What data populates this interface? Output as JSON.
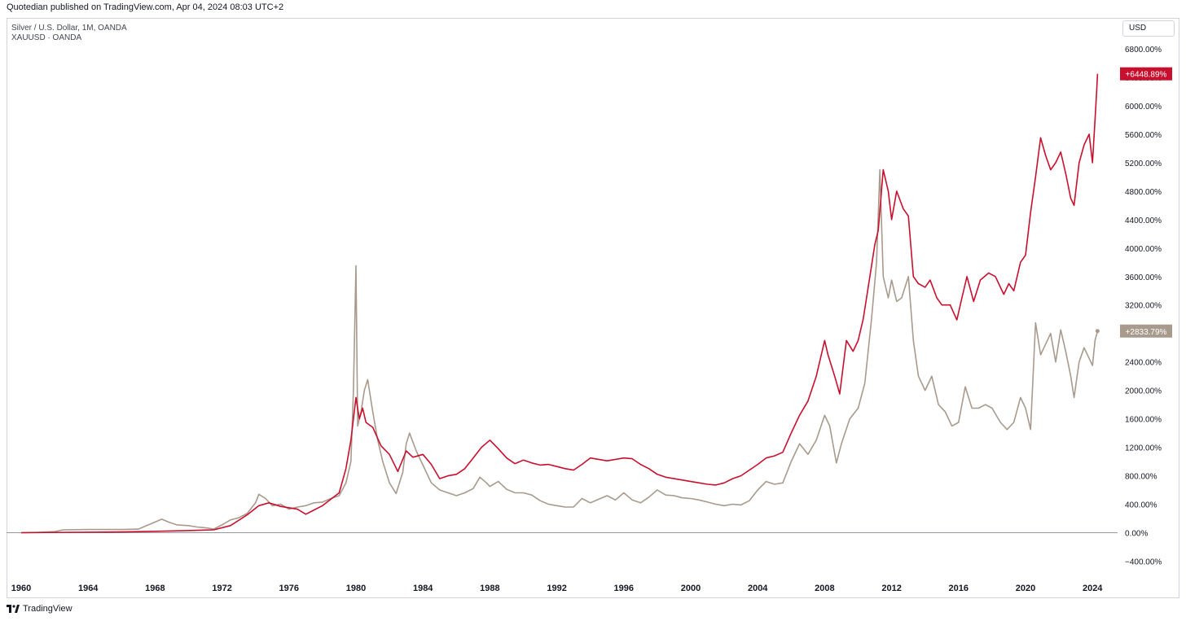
{
  "header": {
    "published": "Quotedian published on TradingView.com, Apr 04, 2024 08:03 UTC+2"
  },
  "legend": {
    "line1": "Silver / U.S. Dollar, 1M, OANDA",
    "line2": "XAUUSD · OANDA"
  },
  "currency_button": "USD",
  "footer": {
    "brand": "TradingView"
  },
  "colors": {
    "silver": "#c8102e",
    "gold": "#a89a8c",
    "axis_text": "#131722",
    "zero_line": "#9598a1"
  },
  "chart_data": {
    "type": "line",
    "ylim": [
      -500,
      7000
    ],
    "xlim": [
      1960,
      2025.5
    ],
    "y_ticks": [
      "6800.00%",
      "6400.00%",
      "6000.00%",
      "5600.00%",
      "5200.00%",
      "4800.00%",
      "4400.00%",
      "4000.00%",
      "3600.00%",
      "3200.00%",
      "2800.00%",
      "2400.00%",
      "2000.00%",
      "1600.00%",
      "1200.00%",
      "800.00%",
      "400.00%",
      "0.00%",
      "−400.00%"
    ],
    "y_tick_values": [
      6800,
      6400,
      6000,
      5600,
      5200,
      4800,
      4400,
      4000,
      3600,
      3200,
      2800,
      2400,
      2000,
      1600,
      1200,
      800,
      400,
      0,
      -400
    ],
    "x_ticks": [
      "1960",
      "1964",
      "1968",
      "1972",
      "1976",
      "1980",
      "1984",
      "1988",
      "1992",
      "1996",
      "2000",
      "2004",
      "2008",
      "2012",
      "2016",
      "2020",
      "2024"
    ],
    "x_tick_values": [
      1960,
      1964,
      1968,
      1972,
      1976,
      1980,
      1984,
      1988,
      1992,
      1996,
      2000,
      2004,
      2008,
      2012,
      2016,
      2020,
      2024
    ],
    "series": [
      {
        "name": "Silver / U.S. Dollar, 1M, OANDA",
        "color": "#c8102e",
        "last_label": "+6448.89%",
        "points": [
          [
            1960.0,
            0
          ],
          [
            1966.0,
            10
          ],
          [
            1968.0,
            20
          ],
          [
            1970.0,
            30
          ],
          [
            1971.5,
            40
          ],
          [
            1972.5,
            100
          ],
          [
            1973.5,
            250
          ],
          [
            1974.2,
            380
          ],
          [
            1974.8,
            420
          ],
          [
            1975.5,
            370
          ],
          [
            1976.5,
            330
          ],
          [
            1977.0,
            260
          ],
          [
            1978.0,
            380
          ],
          [
            1979.0,
            560
          ],
          [
            1979.4,
            900
          ],
          [
            1979.7,
            1300
          ],
          [
            1980.0,
            1900
          ],
          [
            1980.2,
            1600
          ],
          [
            1980.4,
            1750
          ],
          [
            1980.6,
            1550
          ],
          [
            1981.0,
            1480
          ],
          [
            1981.5,
            1220
          ],
          [
            1982.0,
            1100
          ],
          [
            1982.5,
            860
          ],
          [
            1983.0,
            1150
          ],
          [
            1983.4,
            1060
          ],
          [
            1984.0,
            1100
          ],
          [
            1984.5,
            960
          ],
          [
            1985.0,
            760
          ],
          [
            1985.5,
            800
          ],
          [
            1986.0,
            820
          ],
          [
            1986.5,
            900
          ],
          [
            1987.0,
            1050
          ],
          [
            1987.5,
            1200
          ],
          [
            1988.0,
            1300
          ],
          [
            1988.5,
            1180
          ],
          [
            1989.0,
            1050
          ],
          [
            1989.5,
            970
          ],
          [
            1990.0,
            1020
          ],
          [
            1990.5,
            980
          ],
          [
            1991.0,
            950
          ],
          [
            1991.5,
            960
          ],
          [
            1992.0,
            930
          ],
          [
            1992.5,
            900
          ],
          [
            1993.0,
            880
          ],
          [
            1993.5,
            960
          ],
          [
            1994.0,
            1050
          ],
          [
            1995.0,
            1010
          ],
          [
            1996.0,
            1050
          ],
          [
            1996.5,
            1040
          ],
          [
            1997.0,
            960
          ],
          [
            1997.5,
            900
          ],
          [
            1998.0,
            820
          ],
          [
            1998.5,
            780
          ],
          [
            1999.0,
            760
          ],
          [
            1999.5,
            740
          ],
          [
            2000.0,
            720
          ],
          [
            2000.5,
            700
          ],
          [
            2001.0,
            680
          ],
          [
            2001.5,
            670
          ],
          [
            2002.0,
            700
          ],
          [
            2002.5,
            760
          ],
          [
            2003.0,
            800
          ],
          [
            2003.5,
            880
          ],
          [
            2004.0,
            960
          ],
          [
            2004.5,
            1050
          ],
          [
            2005.0,
            1080
          ],
          [
            2005.5,
            1130
          ],
          [
            2006.0,
            1400
          ],
          [
            2006.5,
            1650
          ],
          [
            2007.0,
            1850
          ],
          [
            2007.5,
            2200
          ],
          [
            2008.0,
            2700
          ],
          [
            2008.2,
            2500
          ],
          [
            2008.6,
            2200
          ],
          [
            2008.9,
            1950
          ],
          [
            2009.3,
            2700
          ],
          [
            2009.7,
            2550
          ],
          [
            2010.0,
            2700
          ],
          [
            2010.3,
            3000
          ],
          [
            2010.7,
            3600
          ],
          [
            2011.0,
            4050
          ],
          [
            2011.2,
            4250
          ],
          [
            2011.5,
            5100
          ],
          [
            2011.8,
            4800
          ],
          [
            2012.0,
            4400
          ],
          [
            2012.3,
            4800
          ],
          [
            2012.7,
            4550
          ],
          [
            2013.0,
            4450
          ],
          [
            2013.3,
            3600
          ],
          [
            2013.6,
            3500
          ],
          [
            2014.0,
            3450
          ],
          [
            2014.3,
            3550
          ],
          [
            2014.7,
            3300
          ],
          [
            2015.0,
            3200
          ],
          [
            2015.5,
            3200
          ],
          [
            2015.9,
            2990
          ],
          [
            2016.2,
            3300
          ],
          [
            2016.5,
            3600
          ],
          [
            2016.9,
            3250
          ],
          [
            2017.3,
            3550
          ],
          [
            2017.8,
            3650
          ],
          [
            2018.2,
            3600
          ],
          [
            2018.7,
            3350
          ],
          [
            2019.0,
            3500
          ],
          [
            2019.3,
            3400
          ],
          [
            2019.7,
            3800
          ],
          [
            2020.0,
            3900
          ],
          [
            2020.3,
            4500
          ],
          [
            2020.6,
            5000
          ],
          [
            2020.9,
            5550
          ],
          [
            2021.2,
            5300
          ],
          [
            2021.5,
            5100
          ],
          [
            2021.8,
            5200
          ],
          [
            2022.1,
            5350
          ],
          [
            2022.4,
            5050
          ],
          [
            2022.7,
            4700
          ],
          [
            2022.9,
            4600
          ],
          [
            2023.2,
            5200
          ],
          [
            2023.5,
            5450
          ],
          [
            2023.8,
            5600
          ],
          [
            2024.0,
            5200
          ],
          [
            2024.15,
            5800
          ],
          [
            2024.25,
            6200
          ],
          [
            2024.3,
            6448.89
          ]
        ]
      },
      {
        "name": "XAUUSD · OANDA",
        "color": "#a89a8c",
        "last_label": "+2833.79%",
        "points": [
          [
            1960.0,
            0
          ],
          [
            1961.0,
            5
          ],
          [
            1962.0,
            15
          ],
          [
            1962.5,
            40
          ],
          [
            1964.0,
            45
          ],
          [
            1966.0,
            45
          ],
          [
            1967.0,
            50
          ],
          [
            1967.5,
            100
          ],
          [
            1968.0,
            150
          ],
          [
            1968.4,
            190
          ],
          [
            1968.8,
            150
          ],
          [
            1969.3,
            110
          ],
          [
            1970.0,
            100
          ],
          [
            1970.5,
            80
          ],
          [
            1971.0,
            70
          ],
          [
            1971.5,
            50
          ],
          [
            1972.0,
            110
          ],
          [
            1972.5,
            180
          ],
          [
            1973.0,
            210
          ],
          [
            1973.5,
            270
          ],
          [
            1974.0,
            420
          ],
          [
            1974.2,
            540
          ],
          [
            1974.6,
            480
          ],
          [
            1975.0,
            380
          ],
          [
            1975.5,
            400
          ],
          [
            1976.0,
            330
          ],
          [
            1976.5,
            360
          ],
          [
            1977.0,
            380
          ],
          [
            1977.5,
            420
          ],
          [
            1978.0,
            430
          ],
          [
            1978.5,
            480
          ],
          [
            1979.0,
            520
          ],
          [
            1979.4,
            700
          ],
          [
            1979.7,
            1000
          ],
          [
            1979.85,
            2000
          ],
          [
            1980.0,
            3750
          ],
          [
            1980.1,
            1500
          ],
          [
            1980.3,
            1700
          ],
          [
            1980.5,
            2000
          ],
          [
            1980.7,
            2150
          ],
          [
            1981.0,
            1700
          ],
          [
            1981.3,
            1300
          ],
          [
            1981.6,
            1000
          ],
          [
            1982.0,
            700
          ],
          [
            1982.4,
            550
          ],
          [
            1982.8,
            850
          ],
          [
            1983.0,
            1250
          ],
          [
            1983.2,
            1400
          ],
          [
            1983.6,
            1150
          ],
          [
            1984.0,
            950
          ],
          [
            1984.5,
            700
          ],
          [
            1985.0,
            600
          ],
          [
            1985.5,
            560
          ],
          [
            1986.0,
            520
          ],
          [
            1986.5,
            560
          ],
          [
            1987.0,
            620
          ],
          [
            1987.4,
            780
          ],
          [
            1987.8,
            700
          ],
          [
            1988.0,
            650
          ],
          [
            1988.5,
            720
          ],
          [
            1989.0,
            610
          ],
          [
            1989.5,
            560
          ],
          [
            1990.0,
            560
          ],
          [
            1990.5,
            530
          ],
          [
            1991.0,
            450
          ],
          [
            1991.5,
            400
          ],
          [
            1992.0,
            380
          ],
          [
            1992.5,
            360
          ],
          [
            1993.0,
            360
          ],
          [
            1993.5,
            480
          ],
          [
            1994.0,
            420
          ],
          [
            1994.5,
            470
          ],
          [
            1995.0,
            520
          ],
          [
            1995.5,
            460
          ],
          [
            1996.0,
            560
          ],
          [
            1996.5,
            460
          ],
          [
            1997.0,
            420
          ],
          [
            1997.5,
            500
          ],
          [
            1998.0,
            600
          ],
          [
            1998.5,
            530
          ],
          [
            1999.0,
            520
          ],
          [
            1999.5,
            490
          ],
          [
            2000.0,
            480
          ],
          [
            2000.5,
            460
          ],
          [
            2001.0,
            430
          ],
          [
            2001.5,
            400
          ],
          [
            2002.0,
            380
          ],
          [
            2002.5,
            400
          ],
          [
            2003.0,
            390
          ],
          [
            2003.5,
            450
          ],
          [
            2004.0,
            600
          ],
          [
            2004.5,
            720
          ],
          [
            2005.0,
            680
          ],
          [
            2005.5,
            700
          ],
          [
            2006.0,
            1000
          ],
          [
            2006.5,
            1250
          ],
          [
            2007.0,
            1100
          ],
          [
            2007.5,
            1300
          ],
          [
            2008.0,
            1650
          ],
          [
            2008.3,
            1500
          ],
          [
            2008.7,
            980
          ],
          [
            2009.0,
            1250
          ],
          [
            2009.5,
            1600
          ],
          [
            2010.0,
            1750
          ],
          [
            2010.4,
            2100
          ],
          [
            2010.8,
            3000
          ],
          [
            2011.1,
            3800
          ],
          [
            2011.3,
            5100
          ],
          [
            2011.5,
            3600
          ],
          [
            2011.8,
            3300
          ],
          [
            2012.0,
            3550
          ],
          [
            2012.3,
            3250
          ],
          [
            2012.6,
            3300
          ],
          [
            2013.0,
            3600
          ],
          [
            2013.3,
            2700
          ],
          [
            2013.6,
            2200
          ],
          [
            2014.0,
            2000
          ],
          [
            2014.4,
            2200
          ],
          [
            2014.8,
            1800
          ],
          [
            2015.2,
            1700
          ],
          [
            2015.6,
            1500
          ],
          [
            2016.0,
            1550
          ],
          [
            2016.4,
            2050
          ],
          [
            2016.8,
            1750
          ],
          [
            2017.2,
            1750
          ],
          [
            2017.6,
            1800
          ],
          [
            2018.0,
            1750
          ],
          [
            2018.5,
            1550
          ],
          [
            2018.9,
            1450
          ],
          [
            2019.3,
            1550
          ],
          [
            2019.7,
            1900
          ],
          [
            2020.0,
            1750
          ],
          [
            2020.3,
            1450
          ],
          [
            2020.6,
            2950
          ],
          [
            2020.9,
            2500
          ],
          [
            2021.2,
            2650
          ],
          [
            2021.5,
            2800
          ],
          [
            2021.8,
            2400
          ],
          [
            2022.1,
            2850
          ],
          [
            2022.4,
            2550
          ],
          [
            2022.7,
            2200
          ],
          [
            2022.9,
            1900
          ],
          [
            2023.2,
            2400
          ],
          [
            2023.5,
            2600
          ],
          [
            2023.8,
            2450
          ],
          [
            2024.0,
            2350
          ],
          [
            2024.15,
            2700
          ],
          [
            2024.3,
            2833.79
          ]
        ]
      }
    ]
  }
}
